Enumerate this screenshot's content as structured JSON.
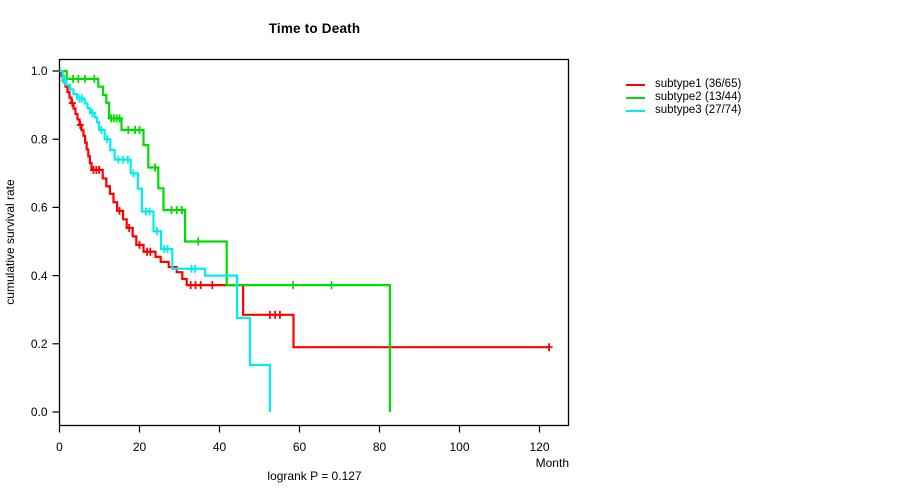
{
  "title": "Time to Death",
  "footnote": "logrank P = 0.127",
  "axes": {
    "y_label": "cumulative survival rate",
    "x_label": "Month",
    "x_ticks": [
      {
        "v": 0,
        "label": "0"
      },
      {
        "v": 20,
        "label": "20"
      },
      {
        "v": 40,
        "label": "40"
      },
      {
        "v": 60,
        "label": "60"
      },
      {
        "v": 80,
        "label": "80"
      },
      {
        "v": 100,
        "label": "100"
      },
      {
        "v": 120,
        "label": "120"
      }
    ],
    "y_ticks": [
      {
        "v": 0.0,
        "label": "0.0"
      },
      {
        "v": 0.2,
        "label": "0.2"
      },
      {
        "v": 0.4,
        "label": "0.4"
      },
      {
        "v": 0.6,
        "label": "0.6"
      },
      {
        "v": 0.8,
        "label": "0.8"
      },
      {
        "v": 1.0,
        "label": "1.0"
      }
    ]
  },
  "legend": [
    {
      "label": "subtype1 (36/65)",
      "color": "#ff0000"
    },
    {
      "label": "subtype2 (13/44)",
      "color": "#00dd00"
    },
    {
      "label": "subtype3 (27/74)",
      "color": "#00eeee"
    }
  ],
  "chart_data": {
    "type": "line",
    "variant": "kaplan-meier-step",
    "title": "Time to Death",
    "xlabel": "Month",
    "ylabel": "cumulative survival rate",
    "xlim": [
      0,
      127.3
    ],
    "ylim": [
      0,
      1.0
    ],
    "grid": false,
    "legend_position": "right-outside",
    "series": [
      {
        "name": "subtype1 (36/65)",
        "color": "#ff0000",
        "end_month": 122.5,
        "steps": [
          [
            0,
            1.0
          ],
          [
            0.5,
            0.985
          ],
          [
            1.0,
            0.969
          ],
          [
            1.5,
            0.954
          ],
          [
            2.0,
            0.938
          ],
          [
            2.5,
            0.922
          ],
          [
            3.0,
            0.906
          ],
          [
            3.5,
            0.89
          ],
          [
            4.0,
            0.874
          ],
          [
            4.5,
            0.858
          ],
          [
            5.0,
            0.842
          ],
          [
            5.5,
            0.826
          ],
          [
            6.0,
            0.81
          ],
          [
            6.4,
            0.79
          ],
          [
            6.8,
            0.77
          ],
          [
            7.2,
            0.75
          ],
          [
            7.6,
            0.73
          ],
          [
            8.0,
            0.71
          ],
          [
            10.8,
            0.685
          ],
          [
            11.7,
            0.662
          ],
          [
            12.6,
            0.64
          ],
          [
            13.5,
            0.615
          ],
          [
            14.4,
            0.59
          ],
          [
            15.9,
            0.565
          ],
          [
            16.8,
            0.54
          ],
          [
            18.3,
            0.515
          ],
          [
            19.2,
            0.49
          ],
          [
            21.0,
            0.47
          ],
          [
            24.0,
            0.455
          ],
          [
            25.3,
            0.44
          ],
          [
            27.3,
            0.425
          ],
          [
            29.3,
            0.41
          ],
          [
            30.7,
            0.39
          ],
          [
            31.8,
            0.372
          ],
          [
            45.9,
            0.285
          ],
          [
            58.5,
            0.19
          ]
        ],
        "censors": [
          [
            3.2,
            0.906
          ],
          [
            5.2,
            0.842
          ],
          [
            8.5,
            0.71
          ],
          [
            9.2,
            0.71
          ],
          [
            9.9,
            0.71
          ],
          [
            15.0,
            0.59
          ],
          [
            17.4,
            0.54
          ],
          [
            20.0,
            0.49
          ],
          [
            21.9,
            0.47
          ],
          [
            22.7,
            0.47
          ],
          [
            32.8,
            0.372
          ],
          [
            34.0,
            0.372
          ],
          [
            35.3,
            0.372
          ],
          [
            38.2,
            0.372
          ],
          [
            52.6,
            0.285
          ],
          [
            53.9,
            0.285
          ],
          [
            55.1,
            0.285
          ],
          [
            122.4,
            0.19
          ]
        ]
      },
      {
        "name": "subtype2 (13/44)",
        "color": "#00dd00",
        "end_month": 82.6,
        "steps": [
          [
            0,
            1.0
          ],
          [
            1.8,
            0.977
          ],
          [
            9.7,
            0.954
          ],
          [
            10.9,
            0.93
          ],
          [
            11.7,
            0.907
          ],
          [
            12.4,
            0.861
          ],
          [
            15.5,
            0.827
          ],
          [
            21.0,
            0.783
          ],
          [
            22.2,
            0.717
          ],
          [
            24.7,
            0.656
          ],
          [
            26.0,
            0.592
          ],
          [
            31.4,
            0.5
          ],
          [
            41.8,
            0.372
          ],
          [
            82.6,
            0.0
          ]
        ],
        "censors": [
          [
            3.4,
            0.977
          ],
          [
            4.7,
            0.977
          ],
          [
            6.4,
            0.977
          ],
          [
            8.7,
            0.977
          ],
          [
            12.9,
            0.861
          ],
          [
            13.6,
            0.861
          ],
          [
            14.3,
            0.861
          ],
          [
            15.0,
            0.861
          ],
          [
            17.2,
            0.827
          ],
          [
            18.9,
            0.827
          ],
          [
            20.0,
            0.827
          ],
          [
            23.9,
            0.717
          ],
          [
            28.0,
            0.592
          ],
          [
            29.3,
            0.592
          ],
          [
            30.6,
            0.592
          ],
          [
            34.7,
            0.5
          ],
          [
            58.4,
            0.372
          ],
          [
            68.0,
            0.372
          ]
        ]
      },
      {
        "name": "subtype3 (27/74)",
        "color": "#00eeee",
        "end_month": 52.6,
        "steps": [
          [
            0,
            1.0
          ],
          [
            0.8,
            0.973
          ],
          [
            1.7,
            0.959
          ],
          [
            2.6,
            0.946
          ],
          [
            3.5,
            0.932
          ],
          [
            4.4,
            0.919
          ],
          [
            6.3,
            0.905
          ],
          [
            7.0,
            0.891
          ],
          [
            7.7,
            0.877
          ],
          [
            8.8,
            0.864
          ],
          [
            9.4,
            0.85
          ],
          [
            9.9,
            0.827
          ],
          [
            11.3,
            0.8
          ],
          [
            12.7,
            0.768
          ],
          [
            13.8,
            0.74
          ],
          [
            17.8,
            0.7
          ],
          [
            19.6,
            0.655
          ],
          [
            20.6,
            0.588
          ],
          [
            23.5,
            0.53
          ],
          [
            25.4,
            0.478
          ],
          [
            28.2,
            0.42
          ],
          [
            36.4,
            0.4
          ],
          [
            44.4,
            0.276
          ],
          [
            47.6,
            0.138
          ],
          [
            52.6,
            0.0
          ]
        ],
        "censors": [
          [
            1.2,
            0.973
          ],
          [
            5.0,
            0.919
          ],
          [
            5.6,
            0.919
          ],
          [
            8.2,
            0.877
          ],
          [
            10.5,
            0.827
          ],
          [
            11.9,
            0.8
          ],
          [
            14.7,
            0.74
          ],
          [
            15.9,
            0.74
          ],
          [
            17.1,
            0.74
          ],
          [
            18.5,
            0.7
          ],
          [
            21.6,
            0.588
          ],
          [
            22.5,
            0.588
          ],
          [
            24.4,
            0.53
          ],
          [
            26.2,
            0.478
          ],
          [
            27.0,
            0.478
          ],
          [
            33.0,
            0.42
          ],
          [
            33.9,
            0.42
          ]
        ]
      }
    ]
  }
}
